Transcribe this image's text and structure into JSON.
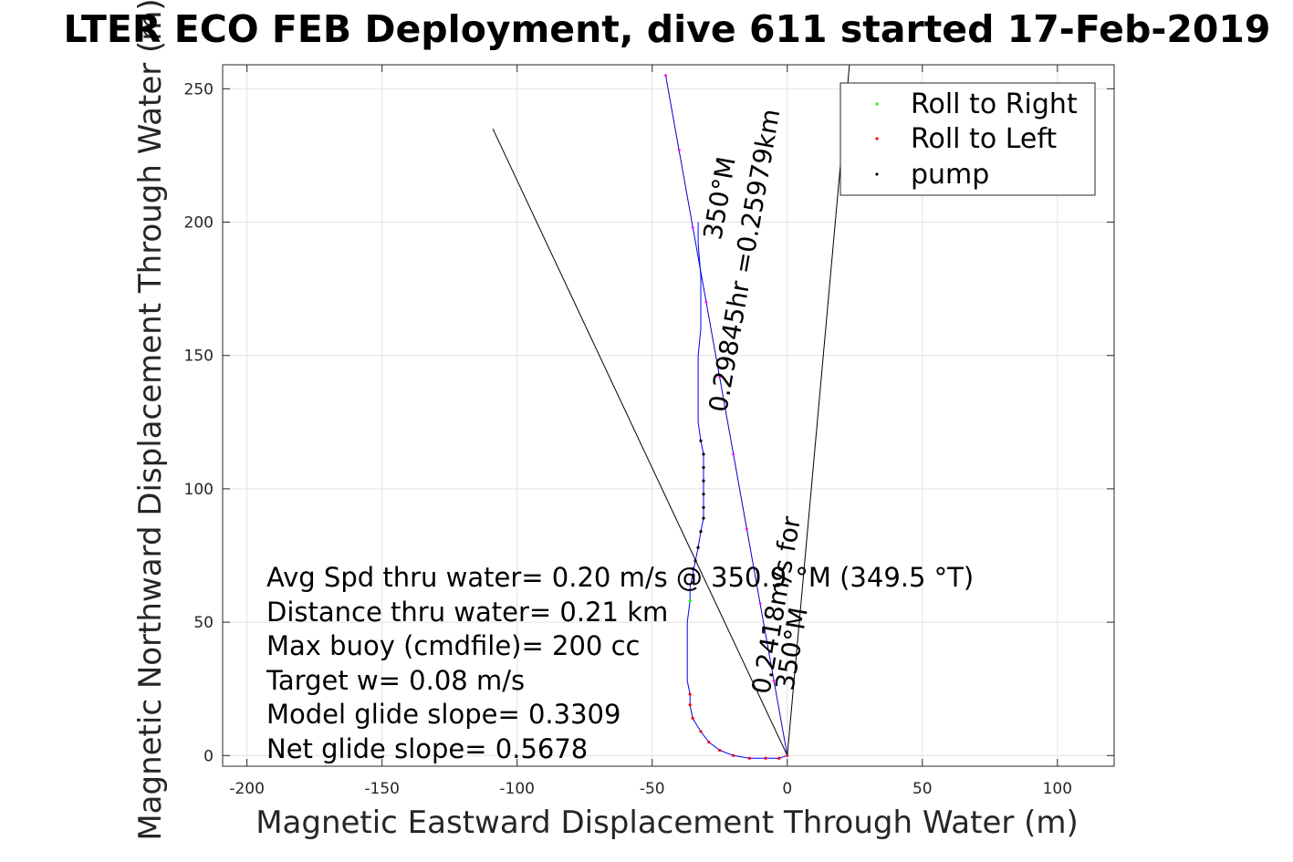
{
  "chart_data": {
    "type": "line",
    "title": "LTER ECO FEB Deployment, dive 611 started 17-Feb-2019",
    "xlabel": "Magnetic Eastward Displacement Through Water (m)",
    "ylabel": "Magnetic Northward Displacement Through Water (m)",
    "xlim": [
      -209,
      121
    ],
    "ylim": [
      -4,
      259
    ],
    "xticks": [
      -200,
      -150,
      -100,
      -50,
      0,
      50,
      100
    ],
    "yticks": [
      0,
      50,
      100,
      150,
      200,
      250
    ],
    "xtick_labels": [
      "-200",
      "-150",
      "-100",
      "-50",
      "0",
      "50",
      "100"
    ],
    "ytick_labels": [
      "0",
      "50",
      "100",
      "150",
      "200",
      "250"
    ],
    "grid": true,
    "legend": {
      "placement": "top-right",
      "entries": [
        {
          "label": "Roll to Right",
          "color": "#00ff00"
        },
        {
          "label": "Roll to Left",
          "color": "#ff0000"
        },
        {
          "label": "pump",
          "color": "#000000"
        }
      ]
    },
    "track": {
      "color": "#0000ff",
      "points": [
        [
          0,
          0
        ],
        [
          -3,
          -1
        ],
        [
          -8,
          -1
        ],
        [
          -14,
          -1
        ],
        [
          -20,
          0
        ],
        [
          -25,
          2
        ],
        [
          -29,
          5
        ],
        [
          -32,
          9
        ],
        [
          -35,
          14
        ],
        [
          -36,
          19
        ],
        [
          -36,
          23
        ],
        [
          -37,
          28
        ],
        [
          -37,
          35
        ],
        [
          -37,
          42
        ],
        [
          -37,
          50
        ],
        [
          -36,
          58
        ],
        [
          -36,
          63
        ],
        [
          -35,
          68
        ],
        [
          -34,
          73
        ],
        [
          -33,
          78
        ],
        [
          -32,
          84
        ],
        [
          -31,
          89
        ],
        [
          -31,
          93
        ],
        [
          -31,
          98
        ],
        [
          -31,
          103
        ],
        [
          -31,
          108
        ],
        [
          -31,
          113
        ],
        [
          -32,
          118
        ],
        [
          -33,
          125
        ],
        [
          -33,
          132
        ],
        [
          -33,
          140
        ],
        [
          -33,
          150
        ],
        [
          -32,
          160
        ],
        [
          -32,
          170
        ],
        [
          -32,
          180
        ],
        [
          -33,
          192
        ],
        [
          -33,
          200
        ]
      ]
    },
    "roll_left_points": [
      [
        0,
        0
      ],
      [
        -3,
        -1
      ],
      [
        -8,
        -1
      ],
      [
        -14,
        -1
      ],
      [
        -20,
        0
      ],
      [
        -25,
        2
      ],
      [
        -29,
        5
      ],
      [
        -32,
        9
      ],
      [
        -35,
        14
      ],
      [
        -36,
        19
      ],
      [
        -36,
        23
      ]
    ],
    "roll_right_points": [
      [
        -36,
        58
      ]
    ],
    "pump_points": [
      [
        -35,
        70
      ],
      [
        -34,
        73
      ],
      [
        -33,
        78
      ],
      [
        -32,
        84
      ],
      [
        -31,
        89
      ],
      [
        -31,
        93
      ],
      [
        -31,
        98
      ],
      [
        -31,
        103
      ],
      [
        -31,
        108
      ],
      [
        -31,
        113
      ],
      [
        -32,
        118
      ]
    ],
    "heading_line": {
      "color": "#0000cc",
      "points": [
        [
          0,
          0
        ],
        [
          -45,
          255
        ]
      ]
    },
    "magenta_points": [
      [
        -45,
        255
      ],
      [
        -40,
        227
      ],
      [
        -35,
        198
      ],
      [
        -30,
        170
      ],
      [
        -25,
        142
      ],
      [
        -20,
        113
      ],
      [
        -15,
        85
      ],
      [
        -10,
        57
      ],
      [
        -5,
        28
      ]
    ],
    "black_lines": [
      {
        "points": [
          [
            0,
            0
          ],
          [
            -109,
            235
          ]
        ]
      },
      {
        "points": [
          [
            0,
            0
          ],
          [
            23,
            259
          ]
        ]
      }
    ],
    "annotations": [
      "Avg Spd thru water=  0.20 m/s @ 350.9 °M (349.5 °T)",
      "Distance thru water=  0.21 km",
      "Max buoy (cmdfile)= 200 cc",
      "Target w= 0.08 m/s",
      "Model glide slope= 0.3309",
      "Net glide slope= 0.5678"
    ],
    "rotated_labels": {
      "upper_line1": "0.29845hr =0.25979km",
      "upper_line2": "350°M",
      "lower_line1": "0.2418m/s for",
      "lower_line2": "350°M"
    }
  }
}
